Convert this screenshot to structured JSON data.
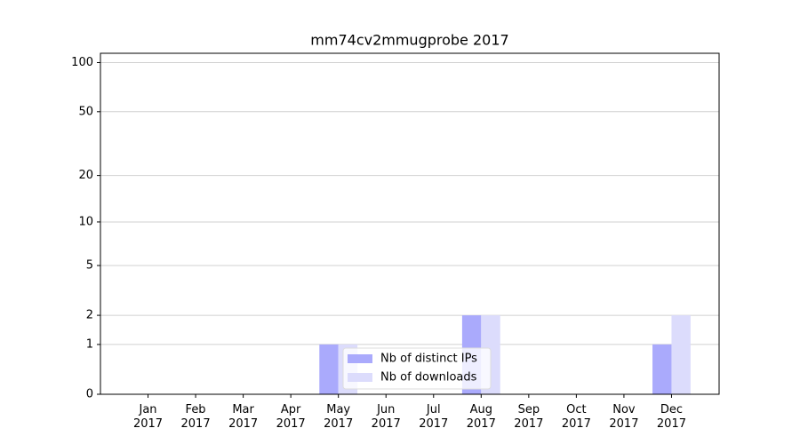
{
  "chart_data": {
    "type": "bar",
    "title": "mm74cv2mmugprobe 2017",
    "categories": [
      "Jan 2017",
      "Feb 2017",
      "Mar 2017",
      "Apr 2017",
      "May 2017",
      "Jun 2017",
      "Jul 2017",
      "Aug 2017",
      "Sep 2017",
      "Oct 2017",
      "Nov 2017",
      "Dec 2017"
    ],
    "series": [
      {
        "name": "Nb of distinct IPs",
        "color": "#aaaafc",
        "values": [
          0,
          0,
          0,
          0,
          1,
          0,
          0,
          2,
          0,
          0,
          0,
          1
        ]
      },
      {
        "name": "Nb of downloads",
        "color": "#dcdcfc",
        "values": [
          0,
          0,
          0,
          0,
          1,
          0,
          0,
          2,
          0,
          0,
          0,
          2
        ]
      }
    ],
    "yscale": "log1p",
    "ylim": [
      0,
      114
    ],
    "yticks": [
      0,
      1,
      2,
      5,
      10,
      20,
      50,
      100
    ],
    "grid": true,
    "legend": "lower center"
  }
}
